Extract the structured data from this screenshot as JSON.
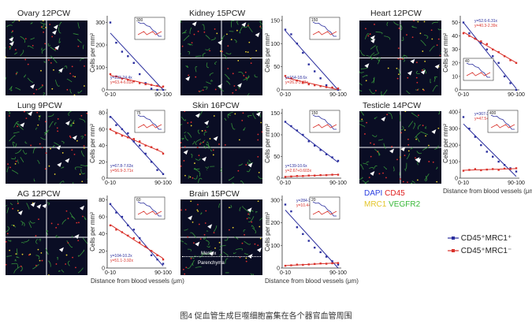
{
  "colors": {
    "blue": "#2b2f9e",
    "red": "#d9322b"
  },
  "panels": [
    {
      "id": "ovary",
      "title": "Ovary 12PCW",
      "yticks": [
        "0",
        "100",
        "200",
        "300"
      ],
      "ymax": 330,
      "xticks": [
        "0-10",
        "90-100"
      ],
      "eq_blue": "y=233-24.4x",
      "eq_red": "y=63.4-6.03x",
      "blue": [
        300,
        210,
        170,
        150,
        120,
        70,
        30,
        5,
        0,
        0
      ],
      "red": [
        70,
        60,
        50,
        45,
        38,
        30,
        25,
        22,
        18,
        15
      ],
      "inset_ticks": [
        "300",
        "0"
      ]
    },
    {
      "id": "kidney",
      "title": "Kidney 15PCW",
      "yticks": [
        "0",
        "50",
        "100",
        "150"
      ],
      "ymax": 160,
      "xticks": [
        "0-10",
        "90-100"
      ],
      "eq_blue": "y=154-18.6x",
      "eq_red": "y=26.1-3.43x",
      "blue": [
        130,
        120,
        100,
        80,
        55,
        40,
        25,
        10,
        5,
        0
      ],
      "red": [
        30,
        25,
        20,
        15,
        12,
        10,
        8,
        6,
        5,
        3
      ],
      "inset_ticks": [
        "150",
        "0"
      ]
    },
    {
      "id": "heart",
      "title": "Heart 12PCW",
      "yticks": [
        "0",
        "10",
        "20",
        "30",
        "40",
        "50"
      ],
      "ymax": 55,
      "xticks": [
        "0-10",
        "90-100"
      ],
      "eq_blue": "y=52.6-6.31x",
      "eq_red": "y=40.3-2.39x",
      "blue": [
        50,
        42,
        38,
        35,
        30,
        25,
        20,
        10,
        5,
        0
      ],
      "red": [
        42,
        40,
        38,
        36,
        34,
        30,
        28,
        25,
        22,
        20
      ],
      "inset_ticks": [
        "40",
        "0"
      ]
    },
    {
      "id": "lung",
      "title": "Lung 9PCW",
      "yticks": [
        "0",
        "20",
        "40",
        "60",
        "80"
      ],
      "ymax": 85,
      "xticks": [
        "0-10",
        "90-100"
      ],
      "eq_blue": "y=67.8-7.63x",
      "eq_red": "y=56.9-3.71x",
      "blue": [
        75,
        65,
        60,
        55,
        45,
        40,
        30,
        20,
        10,
        5
      ],
      "red": [
        60,
        55,
        52,
        50,
        48,
        45,
        40,
        38,
        35,
        30
      ],
      "inset_ticks": [
        "75",
        "0"
      ]
    },
    {
      "id": "skin",
      "title": "Skin 16PCW",
      "yticks": [
        "0",
        "50",
        "100",
        "150"
      ],
      "ymax": 160,
      "xticks": [
        "0-10",
        "90-100"
      ],
      "eq_blue": "y=139-10.6x",
      "eq_red": "y=2.67+0.603x",
      "blue": [
        130,
        120,
        110,
        100,
        85,
        75,
        65,
        55,
        48,
        40
      ],
      "red": [
        3,
        4,
        5,
        5,
        6,
        6,
        7,
        7,
        8,
        8
      ],
      "inset_ticks": [
        "150",
        "0"
      ]
    },
    {
      "id": "testicle",
      "title": "Testicle 14PCW",
      "yticks": [
        "0",
        "100",
        "200",
        "300",
        "400"
      ],
      "ymax": 420,
      "xticks": [
        "0-10",
        "90-100"
      ],
      "eq_blue": "y=367-36x",
      "eq_red": "y=47.5+1.15x",
      "blue": [
        370,
        300,
        250,
        200,
        160,
        130,
        100,
        80,
        60,
        40
      ],
      "red": [
        45,
        50,
        55,
        48,
        52,
        55,
        50,
        58,
        55,
        60
      ],
      "inset_ticks": [
        "400",
        "0"
      ]
    },
    {
      "id": "ag",
      "title": "AG 12PCW",
      "yticks": [
        "0",
        "20",
        "40",
        "60",
        "80"
      ],
      "ymax": 85,
      "xticks": [
        "0-10",
        "90-100"
      ],
      "eq_blue": "y=104-10.2x",
      "eq_red": "y=51.1-3.92x",
      "blue": [
        75,
        65,
        60,
        50,
        45,
        35,
        25,
        15,
        10,
        5
      ],
      "red": [
        50,
        45,
        42,
        38,
        35,
        30,
        25,
        20,
        15,
        10
      ],
      "inset_ticks": [
        "60",
        "0"
      ]
    },
    {
      "id": "brain",
      "title": "Brain 15PCW",
      "yticks": [
        "0",
        "100",
        "200",
        "300"
      ],
      "ymax": 320,
      "xticks": [
        "0-10",
        "90-100"
      ],
      "eq_blue": "y=284-33.8x",
      "eq_red": "y=10.4+0.915x",
      "blue": [
        280,
        250,
        180,
        150,
        120,
        90,
        70,
        50,
        30,
        15
      ],
      "red": [
        10,
        12,
        15,
        14,
        16,
        18,
        20,
        19,
        21,
        22
      ],
      "inset_ticks": [
        "20",
        "0"
      ]
    }
  ],
  "ylabel": "Cells per mm²",
  "xlabel": "Distance from blood vessels (μm)",
  "brain_labels": {
    "top": "Meninx",
    "bottom": "Parenchyma"
  },
  "channel_legend": {
    "dapi": "DAPI",
    "cd45": "CD45",
    "mrc1": "MRC1",
    "vegfr2": "VEGFR2"
  },
  "series_legend": {
    "blue": "CD45⁺MRC1⁺",
    "red": "CD45⁺MRC1⁻"
  },
  "caption": "图4 促血管生成巨噬细胞富集在各个器官血管周围",
  "chart_data": [
    {
      "type": "scatter",
      "title": "Ovary 12PCW",
      "categories": [
        "0-10",
        "90-100"
      ],
      "ylabel": "Cells per mm²",
      "xlabel": "Distance from blood vessels (μm)",
      "ylim": [
        0,
        330
      ],
      "series": [
        {
          "name": "CD45⁺MRC1⁺",
          "values": [
            300,
            210,
            170,
            150,
            120,
            70,
            30,
            5,
            0,
            0
          ]
        },
        {
          "name": "CD45⁺MRC1⁻",
          "values": [
            70,
            60,
            50,
            45,
            38,
            30,
            25,
            22,
            18,
            15
          ]
        }
      ]
    },
    {
      "type": "scatter",
      "title": "Kidney 15PCW",
      "categories": [
        "0-10",
        "90-100"
      ],
      "ylim": [
        0,
        160
      ],
      "series": [
        {
          "name": "CD45⁺MRC1⁺",
          "values": [
            130,
            120,
            100,
            80,
            55,
            40,
            25,
            10,
            5,
            0
          ]
        },
        {
          "name": "CD45⁺MRC1⁻",
          "values": [
            30,
            25,
            20,
            15,
            12,
            10,
            8,
            6,
            5,
            3
          ]
        }
      ]
    },
    {
      "type": "scatter",
      "title": "Heart 12PCW",
      "categories": [
        "0-10",
        "90-100"
      ],
      "ylim": [
        0,
        55
      ],
      "series": [
        {
          "name": "CD45⁺MRC1⁺",
          "values": [
            50,
            42,
            38,
            35,
            30,
            25,
            20,
            10,
            5,
            0
          ]
        },
        {
          "name": "CD45⁺MRC1⁻",
          "values": [
            42,
            40,
            38,
            36,
            34,
            30,
            28,
            25,
            22,
            20
          ]
        }
      ]
    },
    {
      "type": "scatter",
      "title": "Lung 9PCW",
      "categories": [
        "0-10",
        "90-100"
      ],
      "ylim": [
        0,
        85
      ],
      "series": [
        {
          "name": "CD45⁺MRC1⁺",
          "values": [
            75,
            65,
            60,
            55,
            45,
            40,
            30,
            20,
            10,
            5
          ]
        },
        {
          "name": "CD45⁺MRC1⁻",
          "values": [
            60,
            55,
            52,
            50,
            48,
            45,
            40,
            38,
            35,
            30
          ]
        }
      ]
    },
    {
      "type": "scatter",
      "title": "Skin 16PCW",
      "categories": [
        "0-10",
        "90-100"
      ],
      "ylim": [
        0,
        160
      ],
      "series": [
        {
          "name": "CD45⁺MRC1⁺",
          "values": [
            130,
            120,
            110,
            100,
            85,
            75,
            65,
            55,
            48,
            40
          ]
        },
        {
          "name": "CD45⁺MRC1⁻",
          "values": [
            3,
            4,
            5,
            5,
            6,
            6,
            7,
            7,
            8,
            8
          ]
        }
      ]
    },
    {
      "type": "scatter",
      "title": "Testicle 14PCW",
      "categories": [
        "0-10",
        "90-100"
      ],
      "ylim": [
        0,
        420
      ],
      "series": [
        {
          "name": "CD45⁺MRC1⁺",
          "values": [
            370,
            300,
            250,
            200,
            160,
            130,
            100,
            80,
            60,
            40
          ]
        },
        {
          "name": "CD45⁺MRC1⁻",
          "values": [
            45,
            50,
            55,
            48,
            52,
            55,
            50,
            58,
            55,
            60
          ]
        }
      ]
    },
    {
      "type": "scatter",
      "title": "AG 12PCW",
      "categories": [
        "0-10",
        "90-100"
      ],
      "ylim": [
        0,
        85
      ],
      "series": [
        {
          "name": "CD45⁺MRC1⁺",
          "values": [
            75,
            65,
            60,
            50,
            45,
            35,
            25,
            15,
            10,
            5
          ]
        },
        {
          "name": "CD45⁺MRC1⁻",
          "values": [
            50,
            45,
            42,
            38,
            35,
            30,
            25,
            20,
            15,
            10
          ]
        }
      ]
    },
    {
      "type": "scatter",
      "title": "Brain 15PCW",
      "categories": [
        "0-10",
        "90-100"
      ],
      "ylim": [
        0,
        320
      ],
      "series": [
        {
          "name": "CD45⁺MRC1⁺",
          "values": [
            280,
            250,
            180,
            150,
            120,
            90,
            70,
            50,
            30,
            15
          ]
        },
        {
          "name": "CD45⁺MRC1⁻",
          "values": [
            10,
            12,
            15,
            14,
            16,
            18,
            20,
            19,
            21,
            22
          ]
        }
      ]
    }
  ]
}
